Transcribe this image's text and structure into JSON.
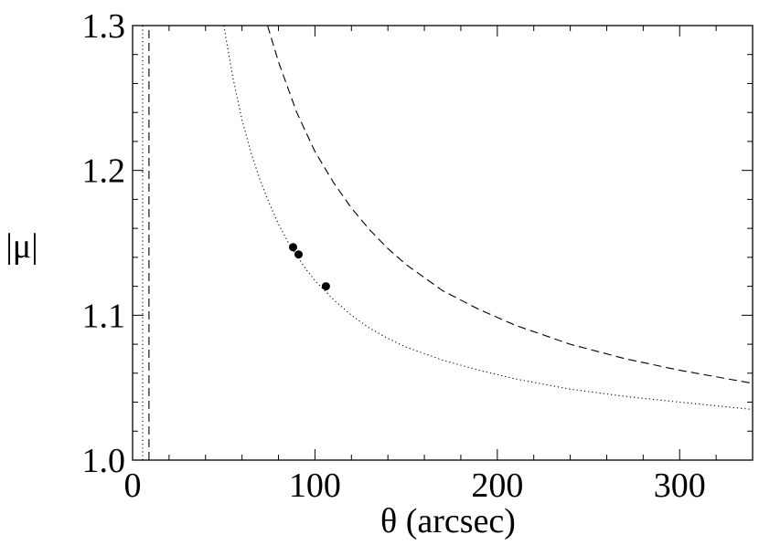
{
  "chart_data": {
    "type": "line",
    "xlabel": "θ (arcsec)",
    "ylabel": "|μ|",
    "xlim": [
      0,
      340
    ],
    "ylim": [
      1.0,
      1.3
    ],
    "xticks": [
      0,
      100,
      200,
      300
    ],
    "xtick_labels": [
      "0",
      "100",
      "200",
      "300"
    ],
    "yticks": [
      1.0,
      1.1,
      1.2,
      1.3
    ],
    "ytick_labels": [
      "1.0",
      "1.1",
      "1.2",
      "1.3"
    ],
    "grid": false,
    "series": [
      {
        "style": "dotted",
        "color": "#000000",
        "x": [
          50,
          55,
          60,
          65,
          70,
          75,
          80,
          85,
          90,
          95,
          100,
          110,
          120,
          130,
          140,
          150,
          170,
          190,
          210,
          240,
          270,
          300,
          340
        ],
        "y": [
          1.3,
          1.264,
          1.235,
          1.212,
          1.193,
          1.177,
          1.163,
          1.151,
          1.141,
          1.132,
          1.124,
          1.111,
          1.1,
          1.091,
          1.084,
          1.078,
          1.069,
          1.062,
          1.056,
          1.049,
          1.044,
          1.04,
          1.035
        ]
      },
      {
        "style": "dashed",
        "color": "#000000",
        "x": [
          74,
          80,
          90,
          100,
          110,
          120,
          130,
          140,
          150,
          170,
          190,
          210,
          240,
          270,
          300,
          340
        ],
        "y": [
          1.3,
          1.275,
          1.24,
          1.213,
          1.192,
          1.174,
          1.159,
          1.146,
          1.135,
          1.117,
          1.104,
          1.093,
          1.08,
          1.07,
          1.062,
          1.053
        ]
      },
      {
        "style": "dotted",
        "color": "#000000",
        "x": [
          5.5,
          5.5
        ],
        "y": [
          1.0,
          1.3
        ]
      },
      {
        "style": "dashed",
        "color": "#000000",
        "x": [
          9,
          9
        ],
        "y": [
          1.0,
          1.3
        ]
      }
    ],
    "points": [
      {
        "x": 88,
        "y": 1.147
      },
      {
        "x": 91,
        "y": 1.142
      },
      {
        "x": 106,
        "y": 1.12
      }
    ]
  }
}
